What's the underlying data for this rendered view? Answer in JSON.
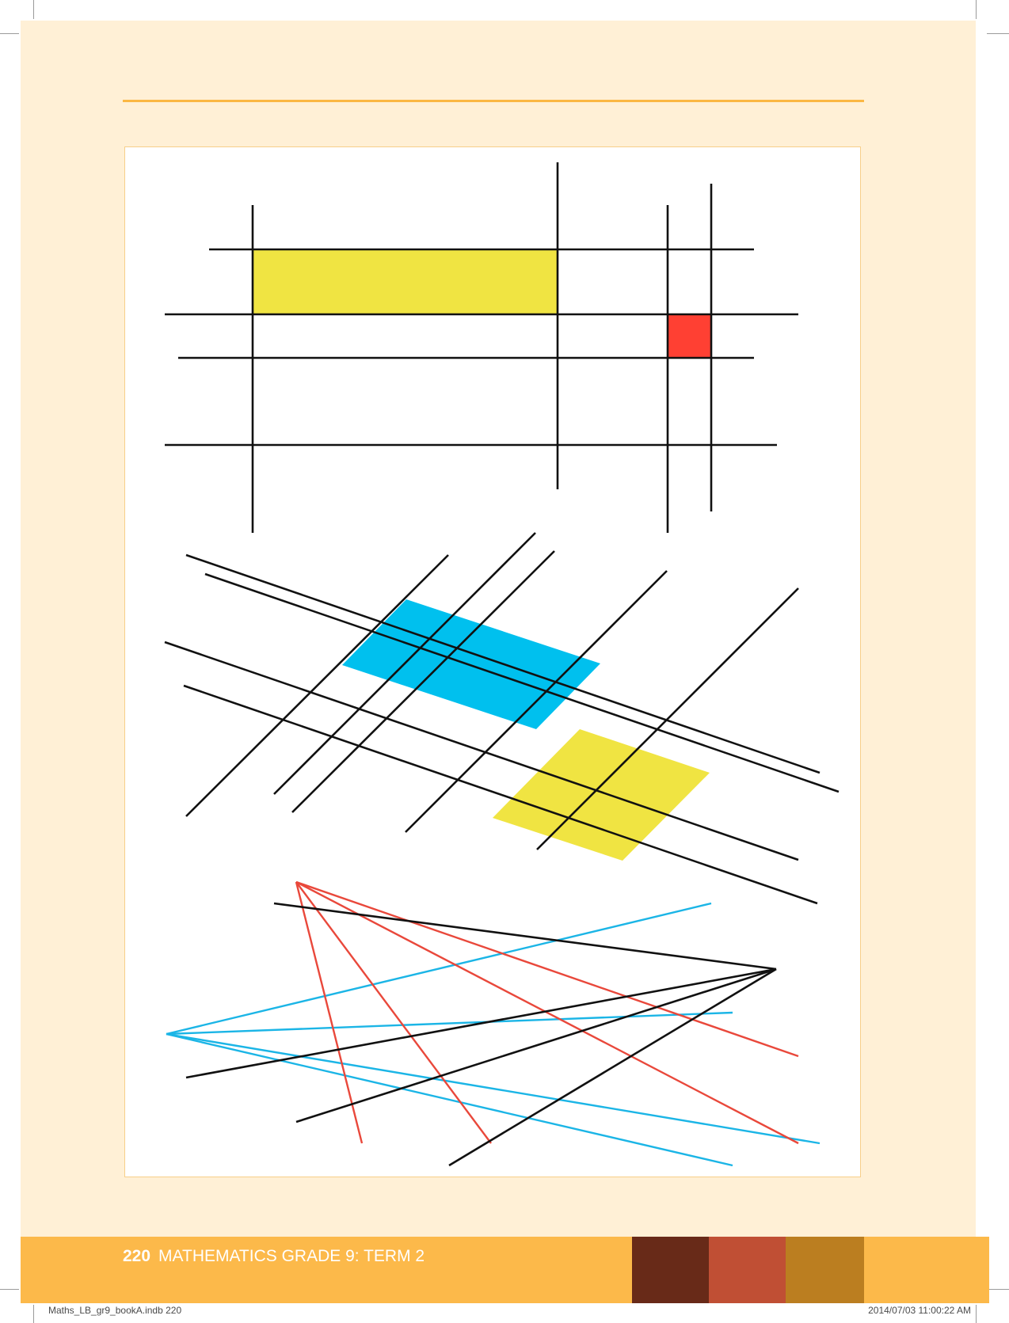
{
  "footer": {
    "page_number": "220",
    "title": "MATHEMATICS GRADE 9: TERM 2"
  },
  "slug": {
    "file": "Maths_LB_gr9_bookA.indb  220",
    "timestamp": "2014/07/03   11:00:22 AM"
  },
  "colors": {
    "page_bg": "#fff0d6",
    "accent": "#fbb743",
    "footer_band": "#fcb94a",
    "swatch_1": "#682a18",
    "swatch_2": "#c04f34",
    "swatch_3": "#bb7e20",
    "line_black": "#111111",
    "yellow_fill": "#f0e442",
    "red_fill": "#ff4033",
    "blue_fill": "#00c0ee",
    "red_line": "#e9483b",
    "blue_line": "#1bb5e6"
  }
}
